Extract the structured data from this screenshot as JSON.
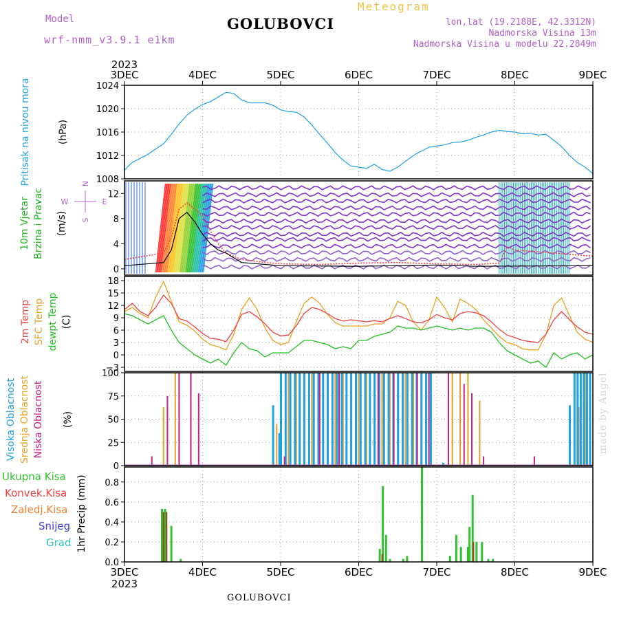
{
  "header": {
    "model_label": "Model",
    "model_name": "wrf-nmm_v3.9.1 e1km",
    "title": "GOLUBOVCI",
    "subtitle": "Meteogram",
    "coords": "lon,lat (19.2188E, 42.3312N)",
    "altitude": "Nadmorska Visina 13m",
    "model_altitude": "Nadmorska Visina u modelu 22.2849m"
  },
  "footer": {
    "station": "GOLUBOVCI",
    "credit": "made by Angel"
  },
  "colors": {
    "pressure": "#1ea0e6",
    "wind_label": "#20b020",
    "temp2m": "#f04040",
    "sfc_temp": "#e8a020",
    "dewpoint": "#20c020",
    "cloud_high": "#1ea0e6",
    "cloud_mid": "#e8a020",
    "cloud_low": "#c02080",
    "precip_total": "#30c030",
    "precip_conv": "#f04040",
    "precip_frozen": "#f08030",
    "snow": "#4040e0",
    "graupel": "#30c0c0",
    "compass": "#b060c8"
  },
  "chart_data": [
    {
      "type": "line",
      "panel": "pressure",
      "ylabel": "Pritisak na nivou mora",
      "unit": "(hPa)",
      "x_labels": [
        "3DEC",
        "4DEC",
        "5DEC",
        "6DEC",
        "7DEC",
        "8DEC",
        "9DEC"
      ],
      "year": "2023",
      "xlim": [
        0,
        6
      ],
      "ylim": [
        1008,
        1024
      ],
      "yticks": [
        1008,
        1012,
        1016,
        1020,
        1024
      ],
      "series": [
        {
          "x": [
            0,
            0.05,
            0.1,
            0.2,
            0.3,
            0.4,
            0.5,
            0.6,
            0.7,
            0.8,
            0.9,
            1.0,
            1.1,
            1.2,
            1.3,
            1.4,
            1.5,
            1.6,
            1.7,
            1.8,
            1.9,
            2.0,
            2.1,
            2.2,
            2.3,
            2.4,
            2.5,
            2.6,
            2.7,
            2.8,
            2.9,
            3.0,
            3.1,
            3.2,
            3.3,
            3.4,
            3.5,
            3.6,
            3.7,
            3.8,
            3.9,
            4.0,
            4.1,
            4.2,
            4.3,
            4.4,
            4.5,
            4.6,
            4.7,
            4.8,
            4.9,
            5.0,
            5.1,
            5.2,
            5.3,
            5.4,
            5.5,
            5.6,
            5.7,
            5.8,
            5.9,
            6.0
          ],
          "values": [
            1009.5,
            1010.2,
            1010.8,
            1011.5,
            1012.2,
            1013.1,
            1014.0,
            1015.6,
            1017.4,
            1018.9,
            1019.9,
            1020.7,
            1021.2,
            1022.0,
            1022.8,
            1022.6,
            1021.5,
            1021.0,
            1021.0,
            1021.0,
            1020.6,
            1019.8,
            1019.5,
            1019.4,
            1018.6,
            1017.2,
            1015.6,
            1014.1,
            1012.5,
            1011.2,
            1010.2,
            1010.0,
            1009.8,
            1010.5,
            1009.6,
            1009.3,
            1010.0,
            1011.0,
            1012.0,
            1012.7,
            1013.4,
            1013.6,
            1013.8,
            1014.2,
            1014.3,
            1014.6,
            1015.1,
            1015.5,
            1016.0,
            1016.3,
            1016.1,
            1016.0,
            1015.7,
            1015.8,
            1015.5,
            1015.6,
            1014.6,
            1013.5,
            1012.0,
            1010.8,
            1010.0,
            1008.9
          ]
        }
      ]
    },
    {
      "type": "line",
      "panel": "wind",
      "ylabel": "10m Vjetar Brzina i Pravac",
      "unit": "(m/s)",
      "compass": [
        "N",
        "E",
        "W",
        "S"
      ],
      "ylim": [
        -1,
        14
      ],
      "yticks": [
        0,
        4,
        8,
        12
      ],
      "series": [
        {
          "name": "brzina",
          "x": [
            0,
            0.25,
            0.5,
            0.6,
            0.7,
            0.8,
            0.9,
            1.0,
            1.1,
            1.2,
            1.3,
            1.5,
            1.8,
            2.0,
            2.5,
            3.0,
            3.5,
            4.0,
            4.5,
            4.8,
            4.9,
            5.0,
            5.5,
            6.0
          ],
          "values": [
            1.5,
            2.0,
            2.5,
            5.0,
            9.5,
            10.5,
            9.5,
            8.5,
            6.0,
            4.0,
            2.5,
            1.5,
            1.0,
            0.8,
            0.7,
            0.9,
            1.0,
            0.8,
            0.7,
            0.9,
            3.5,
            3.0,
            2.5,
            2.0
          ]
        },
        {
          "name": "maks",
          "x": [
            0,
            0.5,
            0.6,
            0.7,
            0.8,
            0.9,
            1.0,
            1.1,
            1.2,
            1.3,
            1.5,
            2.0,
            3.0,
            4.0,
            4.5,
            6.0
          ],
          "values": [
            0.5,
            1.0,
            3.0,
            8.0,
            9.0,
            7.5,
            5.5,
            4.0,
            3.0,
            2.5,
            1.0,
            0.5,
            0.4,
            0.6,
            0.4,
            0.5
          ]
        }
      ]
    },
    {
      "type": "line",
      "panel": "temperature",
      "ylabel": [
        "2m Temp",
        "SFC Temp",
        "dewpt Temp"
      ],
      "unit": "(C)",
      "ylim": [
        -4,
        19
      ],
      "yticks": [
        -3,
        0,
        3,
        6,
        9,
        12,
        15,
        18
      ],
      "series": [
        {
          "name": "2m Temp",
          "x": [
            0,
            0.1,
            0.2,
            0.3,
            0.4,
            0.5,
            0.6,
            0.7,
            0.8,
            0.9,
            1.0,
            1.1,
            1.2,
            1.3,
            1.4,
            1.5,
            1.6,
            1.7,
            1.8,
            1.9,
            2.0,
            2.1,
            2.2,
            2.3,
            2.4,
            2.5,
            2.6,
            2.7,
            2.8,
            2.9,
            3.0,
            3.1,
            3.2,
            3.3,
            3.4,
            3.5,
            3.6,
            3.7,
            3.8,
            3.9,
            4.0,
            4.1,
            4.2,
            4.3,
            4.4,
            4.5,
            4.6,
            4.7,
            4.8,
            4.9,
            5.0,
            5.1,
            5.2,
            5.3,
            5.4,
            5.5,
            5.6,
            5.7,
            5.8,
            5.9,
            6.0
          ],
          "values": [
            11.0,
            12.5,
            10.5,
            9.5,
            11.5,
            14.5,
            12.5,
            8.8,
            8.2,
            6.8,
            5.2,
            4.0,
            3.8,
            3.2,
            6.0,
            9.8,
            10.5,
            9.2,
            7.5,
            5.5,
            4.6,
            4.8,
            7.0,
            10.0,
            11.5,
            11.0,
            10.0,
            8.8,
            8.2,
            8.5,
            8.3,
            8.0,
            8.3,
            8.0,
            8.8,
            9.5,
            8.8,
            8.0,
            7.8,
            8.5,
            9.8,
            9.0,
            8.5,
            10.0,
            10.5,
            10.2,
            9.5,
            8.0,
            6.2,
            4.8,
            4.2,
            3.5,
            3.2,
            3.0,
            5.0,
            8.5,
            10.5,
            8.5,
            6.8,
            5.5,
            5.0
          ]
        },
        {
          "name": "SFC Temp",
          "x": [
            0,
            0.1,
            0.2,
            0.3,
            0.4,
            0.5,
            0.6,
            0.7,
            0.8,
            0.9,
            1.0,
            1.1,
            1.2,
            1.3,
            1.4,
            1.5,
            1.6,
            1.7,
            1.8,
            1.9,
            2.0,
            2.1,
            2.2,
            2.3,
            2.4,
            2.5,
            2.6,
            2.7,
            2.8,
            2.9,
            3.0,
            3.1,
            3.2,
            3.3,
            3.4,
            3.5,
            3.6,
            3.7,
            3.8,
            3.9,
            4.0,
            4.1,
            4.2,
            4.3,
            4.4,
            4.5,
            4.6,
            4.7,
            4.8,
            4.9,
            5.0,
            5.1,
            5.2,
            5.3,
            5.4,
            5.5,
            5.6,
            5.7,
            5.8,
            5.9,
            6.0
          ],
          "values": [
            10.5,
            11.5,
            10.0,
            9.0,
            14.0,
            17.8,
            13.0,
            8.0,
            7.2,
            5.8,
            3.8,
            2.5,
            2.0,
            1.2,
            5.0,
            11.0,
            13.8,
            11.0,
            6.5,
            3.5,
            2.5,
            3.0,
            8.0,
            12.5,
            14.0,
            12.5,
            9.8,
            7.8,
            7.0,
            7.0,
            7.0,
            7.0,
            7.5,
            7.5,
            9.0,
            13.0,
            12.0,
            8.0,
            6.0,
            8.5,
            14.0,
            11.5,
            8.0,
            13.5,
            12.5,
            11.0,
            8.5,
            6.5,
            4.5,
            3.0,
            2.5,
            1.5,
            1.2,
            1.2,
            5.0,
            12.0,
            13.8,
            9.5,
            5.5,
            3.8,
            3.0
          ]
        },
        {
          "name": "dewpt Temp",
          "x": [
            0,
            0.1,
            0.2,
            0.3,
            0.4,
            0.5,
            0.6,
            0.7,
            0.8,
            0.9,
            1.0,
            1.1,
            1.2,
            1.3,
            1.4,
            1.5,
            1.6,
            1.7,
            1.8,
            1.9,
            2.0,
            2.1,
            2.2,
            2.3,
            2.4,
            2.5,
            2.6,
            2.7,
            2.8,
            2.9,
            3.0,
            3.1,
            3.2,
            3.3,
            3.4,
            3.5,
            3.6,
            3.7,
            3.8,
            3.9,
            4.0,
            4.1,
            4.2,
            4.3,
            4.4,
            4.5,
            4.6,
            4.7,
            4.8,
            4.9,
            5.0,
            5.1,
            5.2,
            5.3,
            5.4,
            5.5,
            5.6,
            5.7,
            5.8,
            5.9,
            6.0
          ],
          "values": [
            10.0,
            9.5,
            8.5,
            7.5,
            8.5,
            9.5,
            6.0,
            3.0,
            1.5,
            0.0,
            -1.0,
            -2.0,
            -1.0,
            -2.5,
            0.5,
            3.0,
            1.5,
            1.0,
            -0.5,
            0.5,
            0.5,
            0.5,
            2.0,
            3.5,
            3.5,
            3.0,
            2.5,
            1.5,
            2.0,
            1.5,
            3.5,
            3.5,
            4.5,
            5.0,
            5.5,
            7.0,
            6.5,
            6.5,
            6.0,
            6.5,
            7.0,
            6.5,
            6.0,
            6.5,
            6.0,
            6.5,
            6.5,
            5.5,
            3.0,
            1.0,
            0.0,
            -1.0,
            -2.0,
            -1.5,
            -3.0,
            0.5,
            -1.0,
            0.0,
            0.5,
            -1.0,
            0.0
          ]
        }
      ]
    },
    {
      "type": "bar",
      "panel": "clouds",
      "ylabel": [
        "Visoka Oblacnost",
        "Srednja Oblacnost",
        "Niska Oblacnost"
      ],
      "unit": "(%)",
      "ylim": [
        0,
        100
      ],
      "yticks": [
        0,
        25,
        50,
        75,
        100
      ],
      "series": [
        {
          "name": "Visoka Oblacnost",
          "x": [
            1.9,
            1.98,
            2.0,
            2.06,
            2.12,
            2.18,
            2.24,
            2.3,
            2.36,
            2.42,
            2.48,
            2.54,
            2.6,
            2.66,
            2.72,
            2.78,
            2.84,
            2.9,
            2.96,
            3.02,
            3.08,
            3.14,
            3.2,
            3.26,
            3.32,
            3.38,
            3.44,
            3.5,
            3.56,
            3.62,
            3.68,
            3.74,
            3.8,
            3.86,
            3.92,
            4.08,
            5.7,
            5.76,
            5.8,
            5.84,
            5.88,
            5.92,
            5.96
          ],
          "values": [
            65,
            35,
            100,
            100,
            100,
            100,
            100,
            100,
            100,
            100,
            100,
            100,
            100,
            100,
            100,
            100,
            100,
            100,
            100,
            100,
            100,
            100,
            100,
            100,
            100,
            100,
            100,
            100,
            100,
            100,
            100,
            100,
            100,
            100,
            100,
            3,
            65,
            100,
            100,
            100,
            100,
            100,
            100
          ]
        },
        {
          "name": "Srednja Oblacnost",
          "x": [
            0.5,
            0.65,
            1.95,
            2.1,
            2.2,
            2.3,
            2.4,
            2.5,
            2.6,
            2.7,
            2.8,
            2.9,
            3.0,
            3.1,
            3.2,
            3.3,
            3.4,
            3.5,
            3.6,
            3.7,
            3.8,
            3.9,
            4.2,
            4.3,
            4.4,
            4.55,
            5.82,
            5.9
          ],
          "values": [
            63,
            100,
            45,
            100,
            100,
            100,
            100,
            100,
            100,
            100,
            100,
            100,
            100,
            100,
            100,
            100,
            100,
            100,
            100,
            100,
            100,
            100,
            100,
            100,
            100,
            70,
            63,
            100
          ]
        },
        {
          "name": "Niska Oblacnost",
          "x": [
            0.35,
            0.55,
            0.7,
            0.85,
            0.95,
            2.05,
            2.5,
            2.75,
            3.25,
            3.45,
            3.75,
            3.9,
            4.15,
            4.35,
            4.45,
            4.6,
            5.25
          ],
          "values": [
            10,
            75,
            100,
            100,
            78,
            10,
            100,
            100,
            100,
            100,
            100,
            100,
            100,
            88,
            78,
            10,
            10
          ]
        }
      ]
    },
    {
      "type": "bar",
      "panel": "precip",
      "ylabel": "1hr Precip (mm)",
      "legend": [
        "Ukupna Kisa",
        "Konvek.Kisa",
        "Zaledj.Kisa",
        "Snijeg",
        "Grad"
      ],
      "ylim": [
        0,
        0.95
      ],
      "yticks": [
        0,
        0.2,
        0.4,
        0.6,
        0.8
      ],
      "series": [
        {
          "name": "Ukupna Kisa",
          "x": [
            0.48,
            0.52,
            0.6,
            0.72,
            3.27,
            3.31,
            3.35,
            3.4,
            3.57,
            3.62,
            3.81,
            4.17,
            4.25,
            4.31,
            4.4,
            4.42,
            4.46,
            4.51,
            4.58,
            4.66,
            4.72
          ],
          "values": [
            0.53,
            0.53,
            0.36,
            0.03,
            0.13,
            0.76,
            0.27,
            0.03,
            0.03,
            0.06,
            0.95,
            0.06,
            0.27,
            0.15,
            0.15,
            0.35,
            0.67,
            0.2,
            0.2,
            0.03,
            0.03
          ]
        },
        {
          "name": "Konvek.Kisa",
          "x": [
            0.5,
            0.54,
            3.3,
            4.47
          ],
          "values": [
            0.5,
            0.5,
            0.08,
            0.2
          ]
        }
      ]
    }
  ]
}
